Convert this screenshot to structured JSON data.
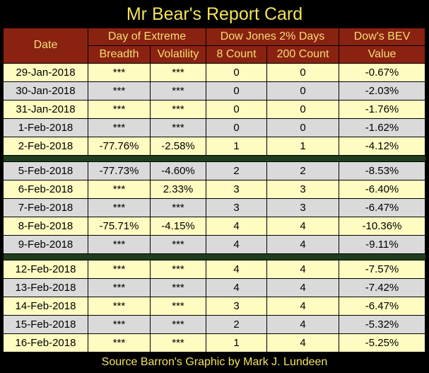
{
  "title": "Mr Bear's Report Card",
  "headers": {
    "date": "Date",
    "extreme_group": "Day of Extreme",
    "breadth": "Breadth",
    "volatility": "Volatility",
    "dow_group": "Dow Jones 2% Days",
    "count8": "8 Count",
    "count200": "200 Count",
    "bev_group": "Dow's BEV",
    "value": "Value"
  },
  "rows": [
    {
      "date": "29-Jan-2018",
      "breadth": "***",
      "volatility": "***",
      "count8": "0",
      "count200": "0",
      "bev": "-0.67%"
    },
    {
      "date": "30-Jan-2018",
      "breadth": "***",
      "volatility": "***",
      "count8": "0",
      "count200": "0",
      "bev": "-2.03%"
    },
    {
      "date": "31-Jan-2018",
      "breadth": "***",
      "volatility": "***",
      "count8": "0",
      "count200": "0",
      "bev": "-1.76%"
    },
    {
      "date": "1-Feb-2018",
      "breadth": "***",
      "volatility": "***",
      "count8": "0",
      "count200": "0",
      "bev": "-1.62%"
    },
    {
      "date": "2-Feb-2018",
      "breadth": "-77.76%",
      "volatility": "-2.58%",
      "count8": "1",
      "count200": "1",
      "bev": "-4.12%"
    },
    {
      "date": "5-Feb-2018",
      "breadth": "-77.73%",
      "volatility": "-4.60%",
      "count8": "2",
      "count200": "2",
      "bev": "-8.53%"
    },
    {
      "date": "6-Feb-2018",
      "breadth": "***",
      "volatility": "2.33%",
      "count8": "3",
      "count200": "3",
      "bev": "-6.40%"
    },
    {
      "date": "7-Feb-2018",
      "breadth": "***",
      "volatility": "***",
      "count8": "3",
      "count200": "3",
      "bev": "-6.47%"
    },
    {
      "date": "8-Feb-2018",
      "breadth": "-75.71%",
      "volatility": "-4.15%",
      "count8": "4",
      "count200": "4",
      "bev": "-10.36%"
    },
    {
      "date": "9-Feb-2018",
      "breadth": "***",
      "volatility": "***",
      "count8": "4",
      "count200": "4",
      "bev": "-9.11%"
    },
    {
      "date": "12-Feb-2018",
      "breadth": "***",
      "volatility": "***",
      "count8": "4",
      "count200": "4",
      "bev": "-7.57%"
    },
    {
      "date": "13-Feb-2018",
      "breadth": "***",
      "volatility": "***",
      "count8": "4",
      "count200": "4",
      "bev": "-7.42%"
    },
    {
      "date": "14-Feb-2018",
      "breadth": "***",
      "volatility": "***",
      "count8": "3",
      "count200": "4",
      "bev": "-6.47%"
    },
    {
      "date": "15-Feb-2018",
      "breadth": "***",
      "volatility": "***",
      "count8": "2",
      "count200": "4",
      "bev": "-5.32%"
    },
    {
      "date": "16-Feb-2018",
      "breadth": "***",
      "volatility": "***",
      "count8": "1",
      "count200": "4",
      "bev": "-5.25%"
    }
  ],
  "week_separators_after_rows": [
    4,
    9
  ],
  "footer": "Source Barron's  Graphic by Mark J. Lundeen",
  "colors": {
    "background": "#000000",
    "title_text": "#f3e25e",
    "header_bg": "#8a2212",
    "header_text": "#f5de73",
    "row_yellow": "#fffcc1",
    "row_gray": "#dadada",
    "week_separator": "#1f3d1d"
  }
}
